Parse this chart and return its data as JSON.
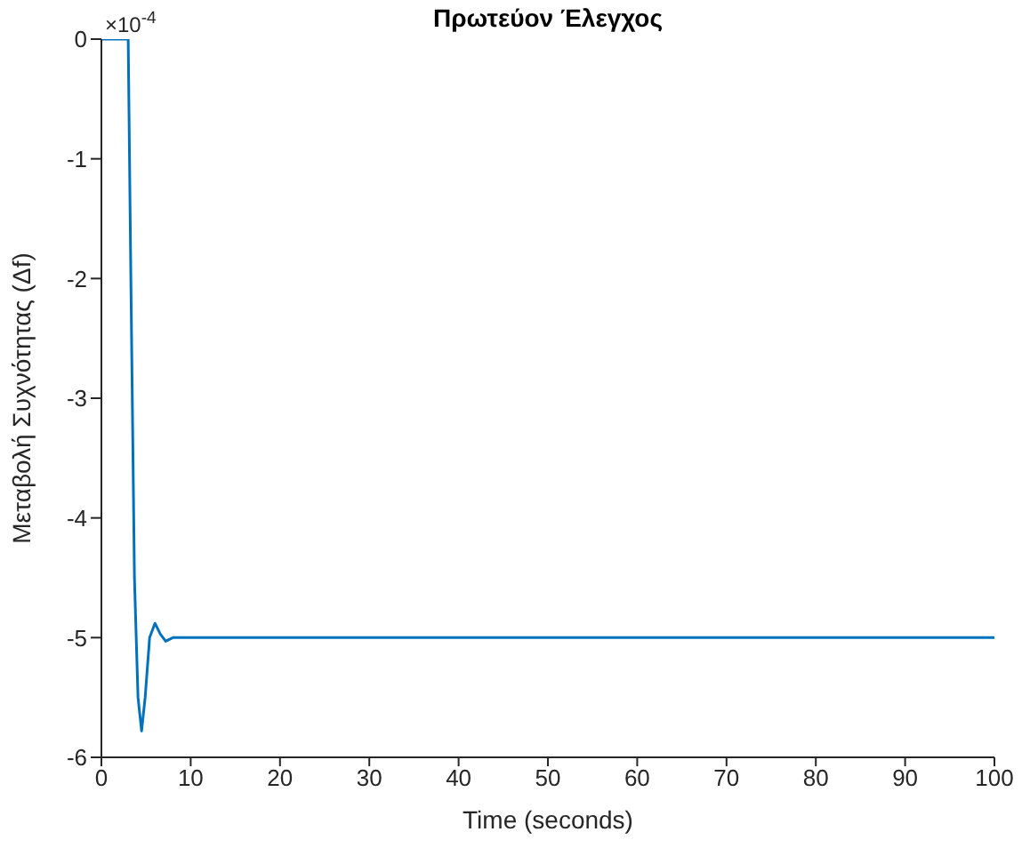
{
  "chart_data": {
    "type": "line",
    "title": "Πρωτεύον  Έλεγχος",
    "xlabel": "Time (seconds)",
    "ylabel": "Μεταβολή Συχνότητας (Δf)",
    "annotations": [
      "×10$^{-4}$"
    ],
    "x": [
      0,
      3,
      3.3,
      3.7,
      4.1,
      4.5,
      4.9,
      5.4,
      6.0,
      6.6,
      7.2,
      8,
      100
    ],
    "series": [
      {
        "color": "#0072bd",
        "values": [
          0,
          0,
          -2,
          -4.5,
          -5.5,
          -5.78,
          -5.5,
          -5,
          -4.88,
          -4.97,
          -5.03,
          -5,
          -5
        ]
      }
    ],
    "xlim": [
      0,
      100
    ],
    "xticks": [
      0,
      10,
      20,
      30,
      40,
      50,
      60,
      70,
      80,
      90,
      100
    ],
    "ylim": [
      -6,
      0
    ],
    "yticks": [
      -6,
      -5,
      -4,
      -3,
      -2,
      -1,
      0
    ],
    "grid": false,
    "legend": false,
    "marker": "none",
    "line_style": "solid"
  }
}
